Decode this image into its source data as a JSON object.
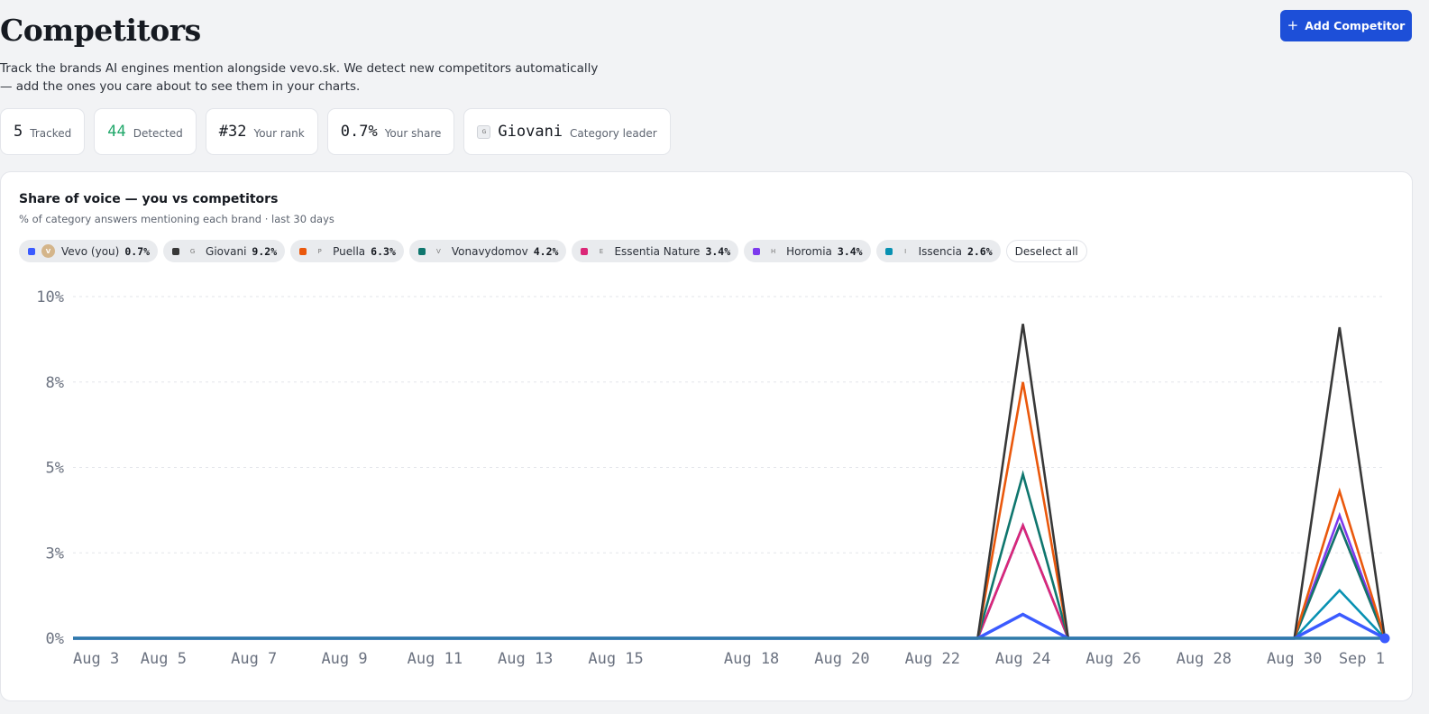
{
  "page": {
    "title": "Competitors",
    "description": "Track the brands AI engines mention alongside vevo.sk. We detect new competitors automatically — add the ones you care about to see them in your charts.",
    "add_button": "Add Competitor"
  },
  "stats": {
    "tracked": {
      "value": "5",
      "label": "Tracked"
    },
    "detected": {
      "value": "44",
      "label": "Detected"
    },
    "rank": {
      "value": "#32",
      "label": "Your rank"
    },
    "share": {
      "value": "0.7%",
      "label": "Your share"
    },
    "leader": {
      "logo_letter": "G",
      "value": "Giovani",
      "label": "Category leader"
    }
  },
  "card": {
    "title": "Share of voice — you vs competitors",
    "subtitle": "% of category answers mentioning each brand · last 30 days",
    "deselect_label": "Deselect all"
  },
  "legend": [
    {
      "name": "Vevo (you)",
      "pct": "0.7%",
      "color": "#3b5bff",
      "logo": "V"
    },
    {
      "name": "Giovani",
      "pct": "9.2%",
      "color": "#383838",
      "logo": "G"
    },
    {
      "name": "Puella",
      "pct": "6.3%",
      "color": "#ea580c",
      "logo": "P"
    },
    {
      "name": "Vonavydomov",
      "pct": "4.2%",
      "color": "#0f766e",
      "logo": "V"
    },
    {
      "name": "Essentia Nature",
      "pct": "3.4%",
      "color": "#db2777",
      "logo": "E"
    },
    {
      "name": "Horomia",
      "pct": "3.4%",
      "color": "#7c3aed",
      "logo": "H"
    },
    {
      "name": "Issencia",
      "pct": "2.6%",
      "color": "#0891b2",
      "logo": "I"
    }
  ],
  "chart_data": {
    "type": "line",
    "title": "Share of voice — you vs competitors",
    "x": [
      "Aug 3",
      "Aug 4",
      "Aug 5",
      "Aug 6",
      "Aug 7",
      "Aug 8",
      "Aug 9",
      "Aug 10",
      "Aug 11",
      "Aug 12",
      "Aug 13",
      "Aug 14",
      "Aug 15",
      "Aug 16",
      "Aug 17",
      "Aug 18",
      "Aug 19",
      "Aug 20",
      "Aug 21",
      "Aug 22",
      "Aug 23",
      "Aug 24",
      "Aug 25",
      "Aug 26",
      "Aug 27",
      "Aug 28",
      "Aug 29",
      "Aug 30",
      "Aug 31",
      "Sep 1"
    ],
    "x_tick_labels": [
      "Aug 3",
      "Aug 5",
      "Aug 7",
      "Aug 9",
      "Aug 11",
      "Aug 13",
      "Aug 15",
      "Aug 18",
      "Aug 20",
      "Aug 22",
      "Aug 24",
      "Aug 26",
      "Aug 28",
      "Aug 30",
      "Sep 1"
    ],
    "y_ticks": [
      0,
      2.5,
      5,
      7.5,
      10
    ],
    "y_tick_labels": [
      "0%",
      "3%",
      "5%",
      "8%",
      "10%"
    ],
    "ylim": [
      0,
      10
    ],
    "grid": true,
    "series": [
      {
        "name": "Vevo (you)",
        "color": "#3b5bff",
        "values": [
          0,
          0,
          0,
          0,
          0,
          0,
          0,
          0,
          0,
          0,
          0,
          0,
          0,
          0,
          0,
          0,
          0,
          0,
          0,
          0,
          0,
          0.7,
          0,
          0,
          0,
          0,
          0,
          0,
          0.7,
          0
        ]
      },
      {
        "name": "Giovani",
        "color": "#383838",
        "values": [
          0,
          0,
          0,
          0,
          0,
          0,
          0,
          0,
          0,
          0,
          0,
          0,
          0,
          0,
          0,
          0,
          0,
          0,
          0,
          0,
          0,
          9.2,
          0,
          0,
          0,
          0,
          0,
          0,
          9.1,
          0
        ]
      },
      {
        "name": "Puella",
        "color": "#ea580c",
        "values": [
          0,
          0,
          0,
          0,
          0,
          0,
          0,
          0,
          0,
          0,
          0,
          0,
          0,
          0,
          0,
          0,
          0,
          0,
          0,
          0,
          0,
          7.5,
          0,
          0,
          0,
          0,
          0,
          0,
          4.3,
          0
        ]
      },
      {
        "name": "Vonavydomov",
        "color": "#0f766e",
        "values": [
          0,
          0,
          0,
          0,
          0,
          0,
          0,
          0,
          0,
          0,
          0,
          0,
          0,
          0,
          0,
          0,
          0,
          0,
          0,
          0,
          0,
          4.8,
          0,
          0,
          0,
          0,
          0,
          0,
          3.3,
          0
        ]
      },
      {
        "name": "Essentia Nature",
        "color": "#db2777",
        "values": [
          0,
          0,
          0,
          0,
          0,
          0,
          0,
          0,
          0,
          0,
          0,
          0,
          0,
          0,
          0,
          0,
          0,
          0,
          0,
          0,
          0,
          3.3,
          0,
          0,
          0,
          0,
          0,
          0,
          3.3,
          0
        ]
      },
      {
        "name": "Horomia",
        "color": "#7c3aed",
        "values": [
          0,
          0,
          0,
          0,
          0,
          0,
          0,
          0,
          0,
          0,
          0,
          0,
          0,
          0,
          0,
          0,
          0,
          0,
          0,
          0,
          0,
          3.3,
          0,
          0,
          0,
          0,
          0,
          0,
          3.6,
          0
        ]
      },
      {
        "name": "Issencia",
        "color": "#0891b2",
        "values": [
          0,
          0,
          0,
          0,
          0,
          0,
          0,
          0,
          0,
          0,
          0,
          0,
          0,
          0,
          0,
          0,
          0,
          0,
          0,
          0,
          0,
          3.3,
          0,
          0,
          0,
          0,
          0,
          0,
          1.4,
          0
        ]
      }
    ]
  }
}
